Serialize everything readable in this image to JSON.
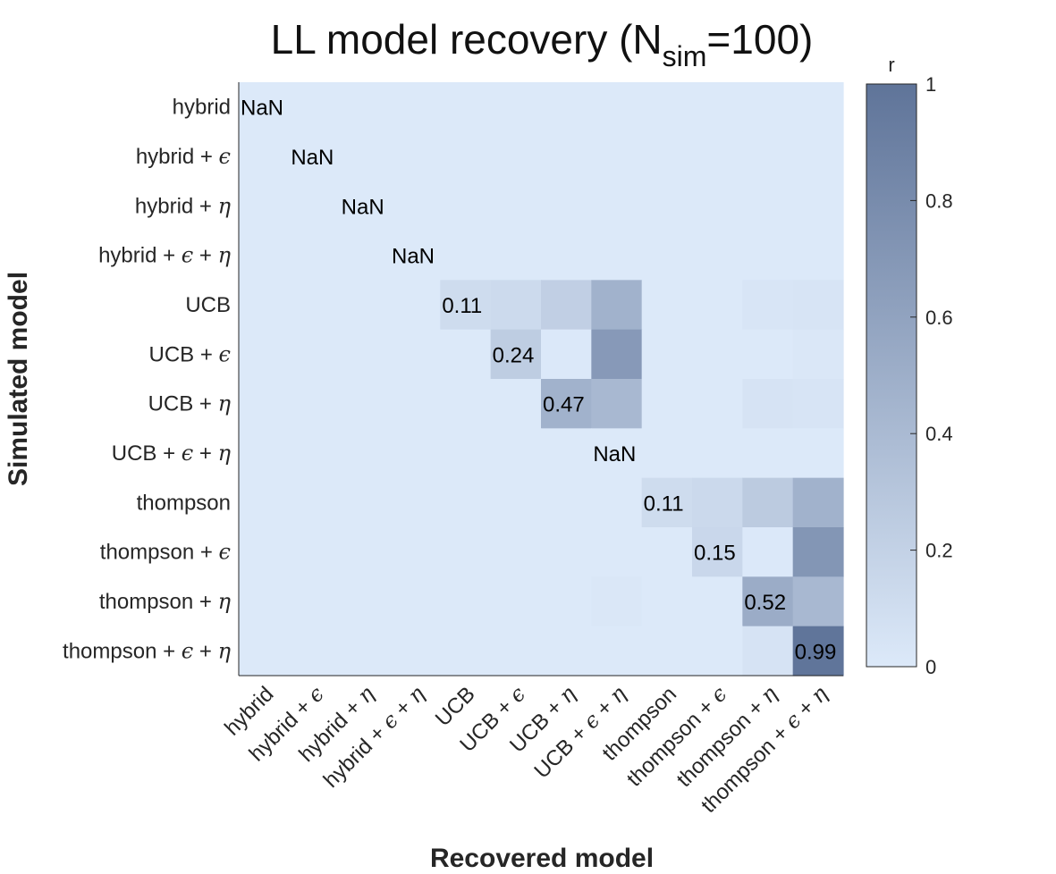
{
  "chart_data": {
    "type": "heatmap",
    "title": {
      "prefix": "LL model recovery (N",
      "subscript": "sim",
      "suffix": "=100)"
    },
    "xlabel": "Recovered model",
    "ylabel": "Simulated model",
    "colorbar": {
      "label": "r",
      "range": [
        0,
        1
      ],
      "ticks": [
        "0",
        "0.2",
        "0.4",
        "0.6",
        "0.8",
        "1"
      ],
      "color_low": "#dce9f9",
      "color_high": "#5f7499"
    },
    "rows": [
      {
        "base": "hybrid",
        "greek": []
      },
      {
        "base": "hybrid",
        "greek": [
          "ϵ"
        ]
      },
      {
        "base": "hybrid",
        "greek": [
          "η"
        ]
      },
      {
        "base": "hybrid",
        "greek": [
          "ϵ",
          "η"
        ]
      },
      {
        "base": "UCB",
        "greek": []
      },
      {
        "base": "UCB",
        "greek": [
          "ϵ"
        ]
      },
      {
        "base": "UCB",
        "greek": [
          "η"
        ]
      },
      {
        "base": "UCB",
        "greek": [
          "ϵ",
          "η"
        ]
      },
      {
        "base": "thompson",
        "greek": []
      },
      {
        "base": "thompson",
        "greek": [
          "ϵ"
        ]
      },
      {
        "base": "thompson",
        "greek": [
          "η"
        ]
      },
      {
        "base": "thompson",
        "greek": [
          "ϵ",
          "η"
        ]
      }
    ],
    "columns": [
      {
        "base": "hybrid",
        "greek": []
      },
      {
        "base": "hybrid",
        "greek": [
          "ϵ"
        ]
      },
      {
        "base": "hybrid",
        "greek": [
          "η"
        ]
      },
      {
        "base": "hybrid",
        "greek": [
          "ϵ",
          "η"
        ]
      },
      {
        "base": "UCB",
        "greek": []
      },
      {
        "base": "UCB",
        "greek": [
          "ϵ"
        ]
      },
      {
        "base": "UCB",
        "greek": [
          "η"
        ]
      },
      {
        "base": "UCB",
        "greek": [
          "ϵ",
          "η"
        ]
      },
      {
        "base": "thompson",
        "greek": []
      },
      {
        "base": "thompson",
        "greek": [
          "ϵ"
        ]
      },
      {
        "base": "thompson",
        "greek": [
          "η"
        ]
      },
      {
        "base": "thompson",
        "greek": [
          "ϵ",
          "η"
        ]
      }
    ],
    "values": [
      [
        0,
        0,
        0,
        0,
        0,
        0,
        0,
        0,
        0,
        0,
        0,
        0
      ],
      [
        0,
        0,
        0,
        0,
        0,
        0,
        0,
        0,
        0,
        0,
        0,
        0
      ],
      [
        0,
        0,
        0,
        0,
        0,
        0,
        0,
        0,
        0,
        0,
        0,
        0
      ],
      [
        0,
        0,
        0,
        0,
        0,
        0,
        0,
        0,
        0,
        0,
        0,
        0
      ],
      [
        0,
        0,
        0,
        0,
        0.11,
        0.13,
        0.22,
        0.47,
        0,
        0,
        0.03,
        0.04
      ],
      [
        0,
        0,
        0,
        0,
        0,
        0.24,
        0.005,
        0.68,
        0,
        0,
        0,
        0.02
      ],
      [
        0,
        0,
        0,
        0,
        0,
        0,
        0.47,
        0.42,
        0,
        0,
        0.05,
        0.04
      ],
      [
        0,
        0,
        0,
        0,
        0,
        0,
        0,
        0,
        0,
        0,
        0,
        0
      ],
      [
        0,
        0,
        0,
        0,
        0,
        0,
        0,
        0,
        0.11,
        0.14,
        0.26,
        0.47
      ],
      [
        0,
        0,
        0,
        0,
        0,
        0,
        0,
        0,
        0,
        0.15,
        0.005,
        0.71
      ],
      [
        0,
        0,
        0,
        0,
        0,
        0,
        0,
        0.02,
        0,
        0,
        0.52,
        0.42
      ],
      [
        0,
        0,
        0,
        0,
        0,
        0,
        0,
        0,
        0,
        0,
        0.05,
        0.99
      ]
    ],
    "diagonal_labels": [
      "NaN",
      "NaN",
      "NaN",
      "NaN",
      "0.11",
      "0.24",
      "0.47",
      "NaN",
      "0.11",
      "0.15",
      "0.52",
      "0.99"
    ]
  }
}
